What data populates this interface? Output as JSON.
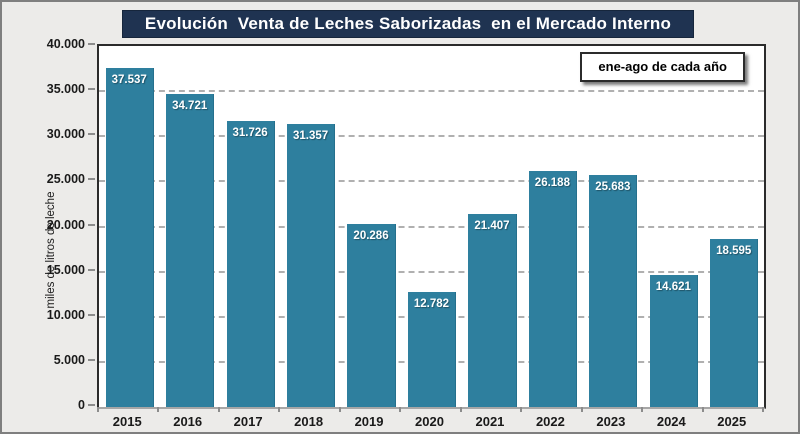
{
  "title": "Evolución  Venta de Leches Saborizadas  en el Mercado Interno",
  "legend": "ene-ago de cada año",
  "colors": {
    "bar": "#2E7F9E",
    "title_background": "#1F3351",
    "title_text": "#ffffff",
    "figure_background": "#ECEBE9",
    "gridline": "#b0b0b0"
  },
  "chart_data": {
    "type": "bar",
    "title": "Evolución Venta de Leches Saborizadas en el Mercado Interno",
    "categories": [
      "2015",
      "2016",
      "2017",
      "2018",
      "2019",
      "2020",
      "2021",
      "2022",
      "2023",
      "2024",
      "2025"
    ],
    "values": [
      37537,
      34721,
      31726,
      31357,
      20286,
      12782,
      21407,
      26188,
      25683,
      14621,
      18595
    ],
    "value_labels": [
      "37.537",
      "34.721",
      "31.726",
      "31.357",
      "20.286",
      "12.782",
      "21.407",
      "26.188",
      "25.683",
      "14.621",
      "18.595"
    ],
    "xlabel": "",
    "ylabel": "miles de litros de leche",
    "ylim": [
      0,
      40000
    ],
    "ytick_step": 5000,
    "ytick_labels": [
      "0",
      "5.000",
      "10.000",
      "15.000",
      "20.000",
      "25.000",
      "30.000",
      "35.000",
      "40.000"
    ],
    "grid": "dashed-horizontal",
    "legend_entries": [
      "ene-ago de cada año"
    ],
    "legend_position": "top-right",
    "bar_label_position": "inside-top"
  }
}
